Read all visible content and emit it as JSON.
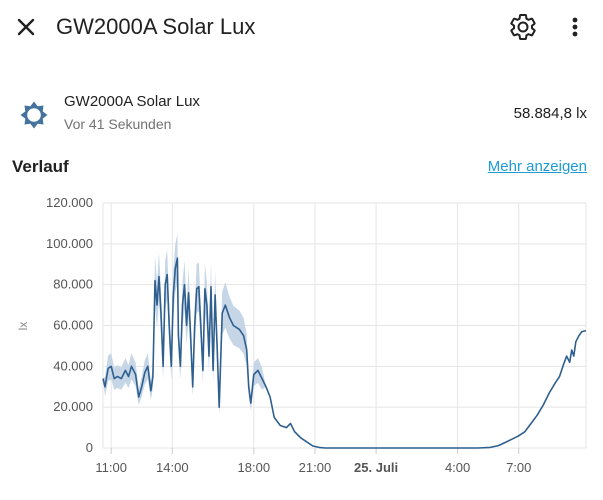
{
  "header": {
    "title": "GW2000A Solar Lux",
    "close_icon": "close-icon",
    "settings_icon": "gear-icon",
    "more_icon": "more-vert-icon"
  },
  "entity": {
    "name": "GW2000A Solar Lux",
    "last_changed": "Vor 41 Sekunden",
    "state": "58.884,8 lx",
    "icon": "sun-icon"
  },
  "history": {
    "title": "Verlauf",
    "more_link": "Mehr anzeigen"
  },
  "colors": {
    "line": "#2e5f8f",
    "band": "#c7d6e6",
    "grid": "#e5e5e5",
    "link": "#1e9bd7"
  },
  "chart_data": {
    "type": "line",
    "ylabel": "lx",
    "ylim": [
      0,
      120000
    ],
    "yticks": [
      0,
      20000,
      40000,
      60000,
      80000,
      100000,
      120000
    ],
    "ytick_labels": [
      "0",
      "20.000",
      "40.000",
      "60.000",
      "80.000",
      "100.000",
      "120.000"
    ],
    "xlim": [
      10.6,
      34.3
    ],
    "xticks": [
      11,
      14,
      18,
      21,
      24,
      28,
      31
    ],
    "xtick_labels": [
      "11:00",
      "14:00",
      "18:00",
      "21:00",
      "25. Juli",
      "4:00",
      "7:00"
    ],
    "grid": true,
    "series": [
      {
        "values": [
          [
            10.6,
            34000
          ],
          [
            10.7,
            30000
          ],
          [
            10.85,
            39000
          ],
          [
            11.0,
            40000
          ],
          [
            11.15,
            34000
          ],
          [
            11.3,
            35000
          ],
          [
            11.5,
            34000
          ],
          [
            11.7,
            38000
          ],
          [
            11.85,
            35000
          ],
          [
            12.0,
            40000
          ],
          [
            12.2,
            36000
          ],
          [
            12.35,
            25000
          ],
          [
            12.5,
            30000
          ],
          [
            12.65,
            37000
          ],
          [
            12.8,
            40000
          ],
          [
            12.95,
            28000
          ],
          [
            13.05,
            35000
          ],
          [
            13.15,
            82000
          ],
          [
            13.25,
            70000
          ],
          [
            13.35,
            84000
          ],
          [
            13.45,
            65000
          ],
          [
            13.55,
            40000
          ],
          [
            13.65,
            80000
          ],
          [
            13.75,
            85000
          ],
          [
            13.85,
            60000
          ],
          [
            13.95,
            40000
          ],
          [
            14.05,
            75000
          ],
          [
            14.15,
            88000
          ],
          [
            14.25,
            93000
          ],
          [
            14.3,
            55000
          ],
          [
            14.4,
            40000
          ],
          [
            14.5,
            70000
          ],
          [
            14.6,
            80000
          ],
          [
            14.7,
            60000
          ],
          [
            14.8,
            76000
          ],
          [
            14.9,
            55000
          ],
          [
            15.0,
            30000
          ],
          [
            15.1,
            60000
          ],
          [
            15.2,
            78000
          ],
          [
            15.3,
            79000
          ],
          [
            15.4,
            60000
          ],
          [
            15.5,
            38000
          ],
          [
            15.6,
            78000
          ],
          [
            15.7,
            70000
          ],
          [
            15.8,
            45000
          ],
          [
            15.9,
            79000
          ],
          [
            16.0,
            38000
          ],
          [
            16.1,
            75000
          ],
          [
            16.2,
            50000
          ],
          [
            16.3,
            20000
          ],
          [
            16.45,
            66000
          ],
          [
            16.6,
            70000
          ],
          [
            16.8,
            64000
          ],
          [
            17.0,
            60000
          ],
          [
            17.3,
            58000
          ],
          [
            17.5,
            55000
          ],
          [
            17.65,
            48000
          ],
          [
            17.75,
            30000
          ],
          [
            17.85,
            22000
          ],
          [
            18.0,
            36000
          ],
          [
            18.2,
            38000
          ],
          [
            18.4,
            34000
          ],
          [
            18.6,
            30000
          ],
          [
            18.8,
            25000
          ],
          [
            19.0,
            15000
          ],
          [
            19.3,
            11000
          ],
          [
            19.6,
            10000
          ],
          [
            19.8,
            12000
          ],
          [
            20.0,
            8000
          ],
          [
            20.3,
            5000
          ],
          [
            20.6,
            3000
          ],
          [
            20.9,
            1000
          ],
          [
            21.2,
            300
          ],
          [
            21.5,
            0
          ],
          [
            24.0,
            0
          ],
          [
            27.0,
            0
          ],
          [
            29.0,
            0
          ],
          [
            29.6,
            300
          ],
          [
            30.0,
            1200
          ],
          [
            30.4,
            3000
          ],
          [
            30.8,
            5000
          ],
          [
            31.0,
            6000
          ],
          [
            31.3,
            8000
          ],
          [
            31.6,
            12000
          ],
          [
            31.9,
            16000
          ],
          [
            32.2,
            21000
          ],
          [
            32.5,
            27000
          ],
          [
            32.8,
            32000
          ],
          [
            33.0,
            35000
          ],
          [
            33.2,
            41000
          ],
          [
            33.35,
            45000
          ],
          [
            33.5,
            42000
          ],
          [
            33.6,
            48000
          ],
          [
            33.7,
            45000
          ],
          [
            33.8,
            52000
          ],
          [
            33.95,
            55000
          ],
          [
            34.1,
            57000
          ],
          [
            34.3,
            57500
          ]
        ]
      }
    ]
  }
}
